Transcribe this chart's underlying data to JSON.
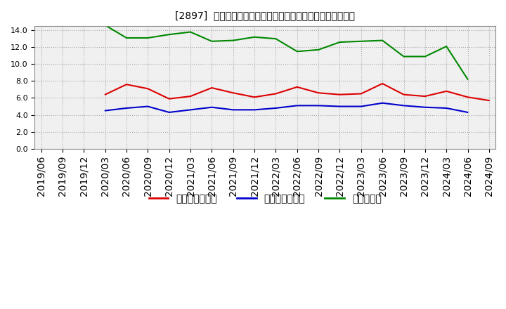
{
  "title": "[2897]  売上債権回転率、買入債務回転率、在庫回転率の推移",
  "x_labels": [
    "2019/06",
    "2019/09",
    "2019/12",
    "2020/03",
    "2020/06",
    "2020/09",
    "2020/12",
    "2021/03",
    "2021/06",
    "2021/09",
    "2021/12",
    "2022/03",
    "2022/06",
    "2022/09",
    "2022/12",
    "2023/03",
    "2023/06",
    "2023/09",
    "2023/12",
    "2024/03",
    "2024/06",
    "2024/09"
  ],
  "series": {
    "売上債権回転率": {
      "color": "#dd0000",
      "values": [
        null,
        null,
        null,
        6.4,
        7.6,
        7.1,
        5.9,
        6.2,
        7.2,
        6.6,
        6.1,
        6.5,
        7.3,
        6.6,
        6.4,
        6.5,
        7.7,
        6.4,
        6.2,
        6.8,
        6.1,
        5.7
      ]
    },
    "買入債務回転率": {
      "color": "#0000cc",
      "values": [
        null,
        null,
        null,
        4.5,
        4.8,
        5.0,
        4.3,
        4.6,
        4.9,
        4.6,
        4.6,
        4.8,
        5.1,
        5.1,
        5.0,
        5.0,
        5.4,
        5.1,
        4.9,
        4.8,
        4.3,
        null
      ]
    },
    "在庫回転率": {
      "color": "#008800",
      "values": [
        null,
        null,
        null,
        14.6,
        13.1,
        13.1,
        13.5,
        13.8,
        12.7,
        12.8,
        13.2,
        13.0,
        11.5,
        11.7,
        12.6,
        12.7,
        12.8,
        10.9,
        10.9,
        12.1,
        8.2,
        null
      ]
    }
  },
  "legend": [
    "売上債権回転率",
    "買入債務回転率",
    "在庫回転率"
  ],
  "ylim": [
    0.0,
    14.5
  ],
  "yticks": [
    0.0,
    2.0,
    4.0,
    6.0,
    8.0,
    10.0,
    12.0,
    14.0
  ],
  "background_color": "#ffffff",
  "plot_bg_color": "#f0f0f0",
  "grid_color": "#999999"
}
